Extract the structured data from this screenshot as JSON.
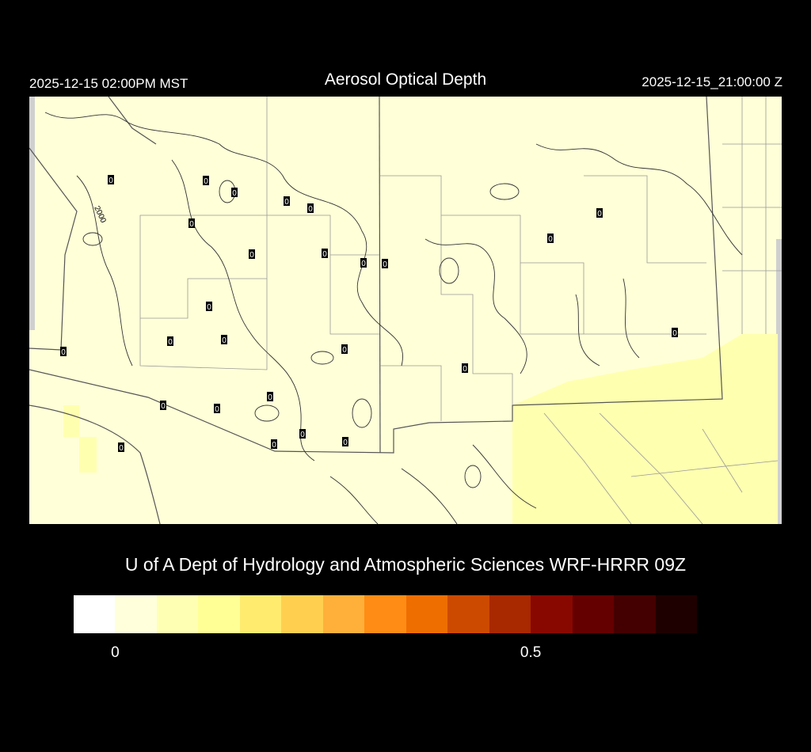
{
  "header": {
    "valid_local": "2025-12-15 02:00PM MST",
    "title": "Aerosol Optical Depth",
    "valid_utc": "2025-12-15_21:00:00 Z"
  },
  "map": {
    "background_color": "#ffffd8",
    "elevated_region_color": "#ffffb0",
    "contour_label": "2000",
    "station_values": [
      "0",
      "0",
      "0",
      "0",
      "0",
      "0",
      "0",
      "0",
      "0",
      "0",
      "0",
      "0",
      "0",
      "0",
      "0",
      "0",
      "0",
      "0",
      "0",
      "0",
      "0",
      "0",
      "0",
      "0",
      "0",
      "0",
      "0"
    ]
  },
  "credit": "U of A Dept of Hydrology and Atmospheric Sciences WRF-HRRR 09Z",
  "colorbar": {
    "colors": [
      "#ffffff",
      "#ffffdc",
      "#ffffb4",
      "#ffff96",
      "#ffeb6e",
      "#ffd050",
      "#ffb03a",
      "#ff8c14",
      "#ee6e00",
      "#cc4a00",
      "#a82800",
      "#880800",
      "#640000",
      "#440000",
      "#1e0000"
    ],
    "ticks": [
      {
        "label": "0",
        "value": 0
      },
      {
        "label": "0.5",
        "value": 0.5
      }
    ],
    "range": [
      -0.05,
      0.7
    ]
  }
}
